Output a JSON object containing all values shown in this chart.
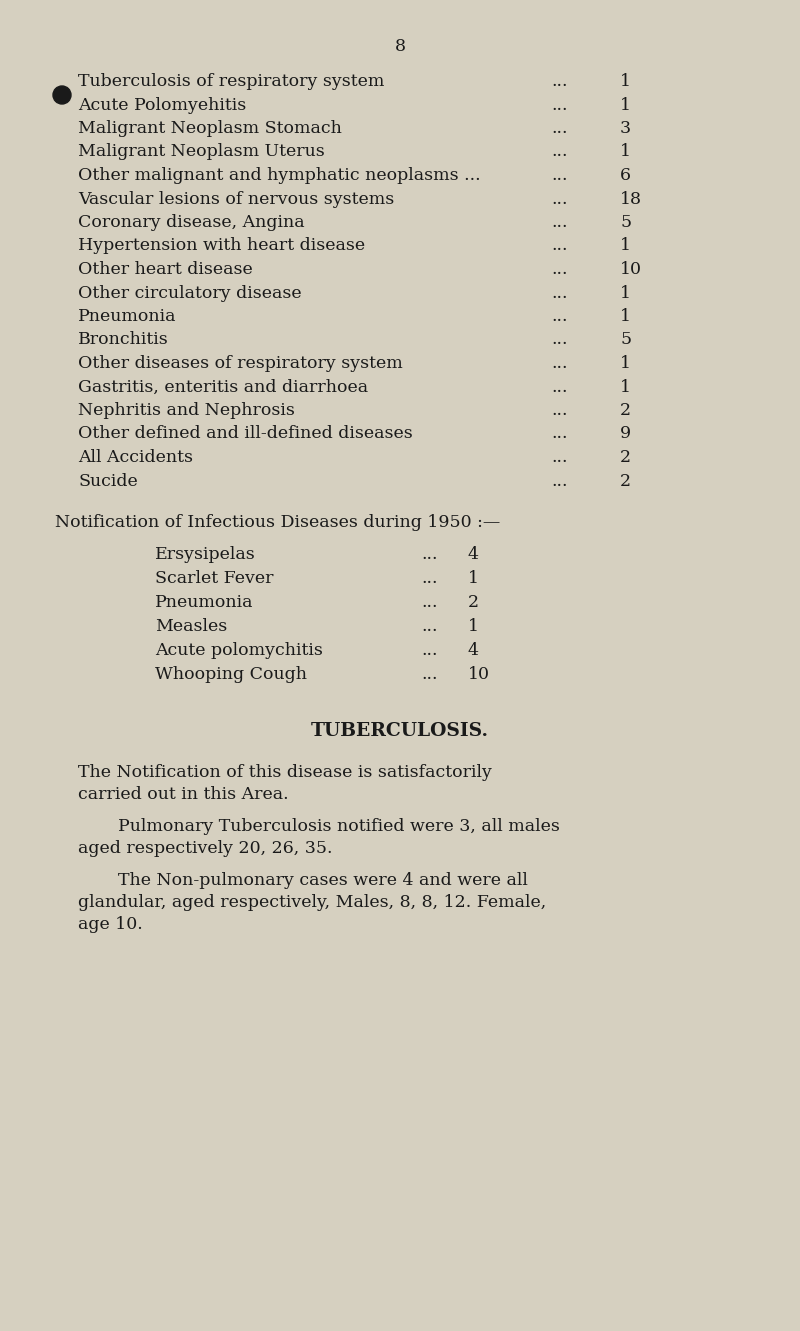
{
  "bg_color": "#d6d0c0",
  "text_color": "#1a1a1a",
  "page_number": "8",
  "table_rows": [
    {
      "label": "Tuberculosis of respiratory system",
      "dots": "...",
      "value": "1",
      "has_dots_in_label": false
    },
    {
      "label": "Acute Polomyehitis        ...",
      "dots": "...",
      "value": "1",
      "has_dots_in_label": true
    },
    {
      "label": "Maligrant Neoplasm Stomach",
      "dots": "...",
      "value": "3",
      "has_dots_in_label": false
    },
    {
      "label": "Maligrant Neoplasm Uterus",
      "dots": "...",
      "value": "1",
      "has_dots_in_label": false
    },
    {
      "label": "Other malignant and hymphatic neoplasms ...",
      "dots": "",
      "value": "6",
      "has_dots_in_label": true
    },
    {
      "label": "Vascular lesions of nervous systems",
      "dots": "...",
      "value": "18",
      "has_dots_in_label": false
    },
    {
      "label": "Coronary disease, Angina",
      "dots": "...",
      "value": "5",
      "has_dots_in_label": false
    },
    {
      "label": "Hypertension with heart disease",
      "dots": "...",
      "value": "1",
      "has_dots_in_label": false
    },
    {
      "label": "Other heart disease        ...",
      "dots": "...",
      "value": "10",
      "has_dots_in_label": true
    },
    {
      "label": "Other circulatory disease",
      "dots": "...",
      "value": "1",
      "has_dots_in_label": false
    },
    {
      "label": "Pneumonia        ...",
      "dots": "...",
      "value": "1",
      "has_dots_in_label": true
    },
    {
      "label": "Bronchitis        ...",
      "dots": "...",
      "value": "5",
      "has_dots_in_label": true
    },
    {
      "label": "Other diseases of respiratory system",
      "dots": "...",
      "value": "1",
      "has_dots_in_label": false
    },
    {
      "label": "Gastritis, enteritis and diarrhoea",
      "dots": "...",
      "value": "1",
      "has_dots_in_label": false
    },
    {
      "label": "Nephritis and Nephrosis",
      "dots": "...",
      "value": "2",
      "has_dots_in_label": false
    },
    {
      "label": "Other defined and ill-defined diseases",
      "dots": "...",
      "value": "9",
      "has_dots_in_label": false
    },
    {
      "label": "All Accidents        ...",
      "dots": "...",
      "value": "2",
      "has_dots_in_label": true
    },
    {
      "label": "Sucide        ...",
      "dots": "...",
      "value": "2",
      "has_dots_in_label": true
    }
  ],
  "notification_header": "Notification of Infectious Diseases during 1950 :—",
  "notification_rows": [
    {
      "label": "Ersysipelas",
      "dots": "...",
      "value": "4"
    },
    {
      "label": "Scarlet Fever",
      "dots": "...",
      "value": "1"
    },
    {
      "label": "Pneumonia",
      "dots": "...",
      "value": "2"
    },
    {
      "label": "Measles",
      "dots": "...",
      "value": "1"
    },
    {
      "label": "Acute polomychitis",
      "dots": "...",
      "value": "4"
    },
    {
      "label": "Whooping Cough",
      "dots": "...",
      "value": "10"
    }
  ],
  "tuberculosis_title": "TUBERCULOSIS.",
  "para1_line1": "The Notification of this disease is satisfactorily",
  "para1_line2": "carried out in this Area.",
  "para2_line1": "Pulmonary Tuberculosis notified were 3, all males",
  "para2_line2": "aged respectively 20, 26, 35.",
  "para3_line1": "The Non-pulmonary cases were 4 and were all",
  "para3_line2": "glandular, aged respectively, Males, 8, 8, 12. Female,",
  "para3_line3": "age 10.",
  "bullet_row": 1,
  "font_size_table": 12.5,
  "font_size_notif_header": 12.5,
  "font_size_title_section": 13.5,
  "font_size_body": 12.5
}
